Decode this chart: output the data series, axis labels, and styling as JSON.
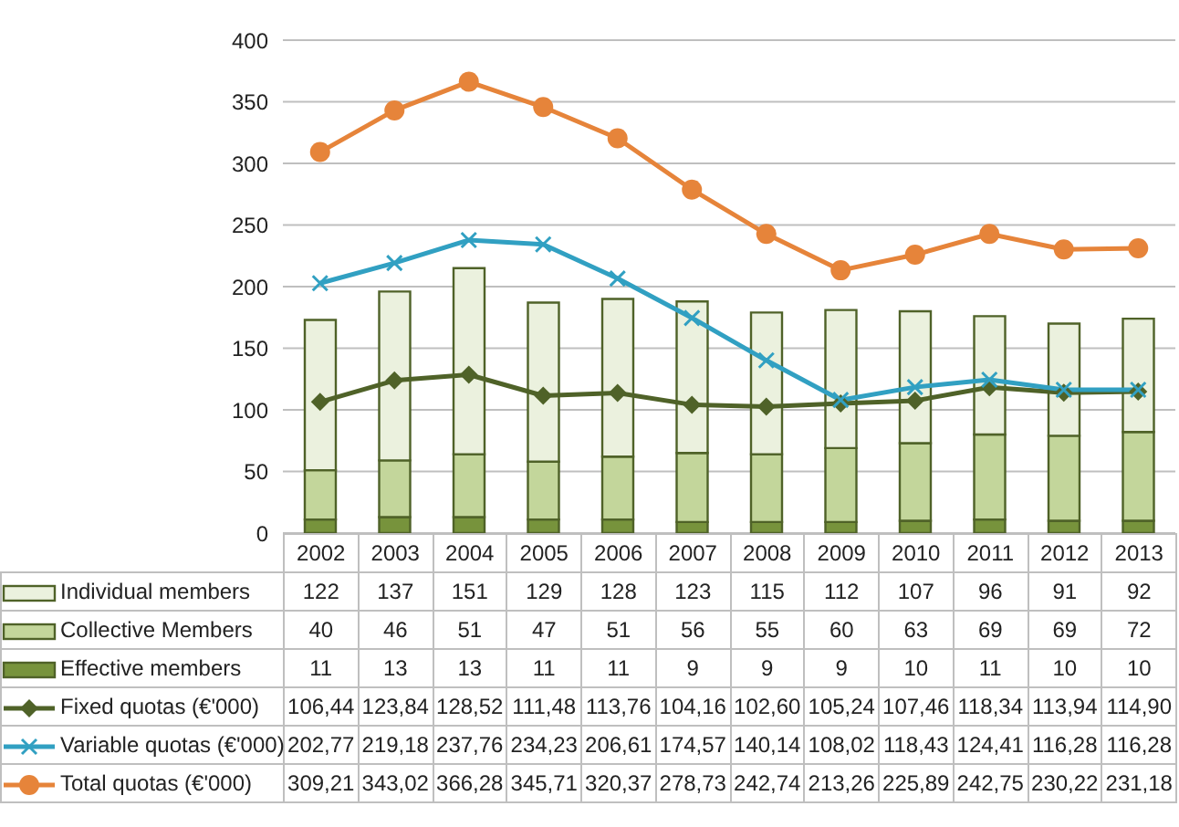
{
  "chart_data": {
    "type": "bar",
    "stacked": true,
    "categories": [
      "2002",
      "2003",
      "2004",
      "2005",
      "2006",
      "2007",
      "2008",
      "2009",
      "2010",
      "2011",
      "2012",
      "2013"
    ],
    "series": [
      {
        "name": "Effective members",
        "color": "#77933c",
        "values": [
          11,
          13,
          13,
          11,
          11,
          9,
          9,
          9,
          10,
          11,
          10,
          10
        ],
        "value_labels": [
          "11",
          "13",
          "13",
          "11",
          "11",
          "9",
          "9",
          "9",
          "10",
          "11",
          "10",
          "10"
        ]
      },
      {
        "name": "Collective Members",
        "color": "#c3d69b",
        "values": [
          40,
          46,
          51,
          47,
          51,
          56,
          55,
          60,
          63,
          69,
          69,
          72
        ],
        "value_labels": [
          "40",
          "46",
          "51",
          "47",
          "51",
          "56",
          "55",
          "60",
          "63",
          "69",
          "69",
          "72"
        ]
      },
      {
        "name": "Individual members",
        "color": "#ebf1de",
        "values": [
          122,
          137,
          151,
          129,
          128,
          123,
          115,
          112,
          107,
          96,
          91,
          92
        ],
        "value_labels": [
          "122",
          "137",
          "151",
          "129",
          "128",
          "123",
          "115",
          "112",
          "107",
          "96",
          "91",
          "92"
        ]
      },
      {
        "name": "Fixed quotas (€'000)",
        "type": "line",
        "marker": "diamond",
        "color": "#4f6228",
        "values": [
          106.44,
          123.84,
          128.52,
          111.48,
          113.76,
          104.16,
          102.6,
          105.24,
          107.46,
          118.34,
          113.94,
          114.9
        ],
        "value_labels": [
          "106,44",
          "123,84",
          "128,52",
          "111,48",
          "113,76",
          "104,16",
          "102,60",
          "105,24",
          "107,46",
          "118,34",
          "113,94",
          "114,90"
        ]
      },
      {
        "name": "Variable quotas (€'000)",
        "type": "line",
        "marker": "cross",
        "color": "#31a0c2",
        "values": [
          202.77,
          219.18,
          237.76,
          234.23,
          206.61,
          174.57,
          140.14,
          108.02,
          118.43,
          124.41,
          116.28,
          116.28
        ],
        "value_labels": [
          "202,77",
          "219,18",
          "237,76",
          "234,23",
          "206,61",
          "174,57",
          "140,14",
          "108,02",
          "118,43",
          "124,41",
          "116,28",
          "116,28"
        ]
      },
      {
        "name": "Total quotas (€'000)",
        "type": "line",
        "marker": "circle",
        "color": "#e6843a",
        "values": [
          309.21,
          343.02,
          366.28,
          345.71,
          320.37,
          278.73,
          242.74,
          213.26,
          225.89,
          242.75,
          230.22,
          231.18
        ],
        "value_labels": [
          "309,21",
          "343,02",
          "366,28",
          "345,71",
          "320,37",
          "278,73",
          "242,74",
          "213,26",
          "225,89",
          "242,75",
          "230,22",
          "231,18"
        ]
      }
    ],
    "ylim": [
      0,
      400
    ],
    "yticks": [
      0,
      50,
      100,
      150,
      200,
      250,
      300,
      350,
      400
    ],
    "grid": "y",
    "legend": "bottom"
  }
}
